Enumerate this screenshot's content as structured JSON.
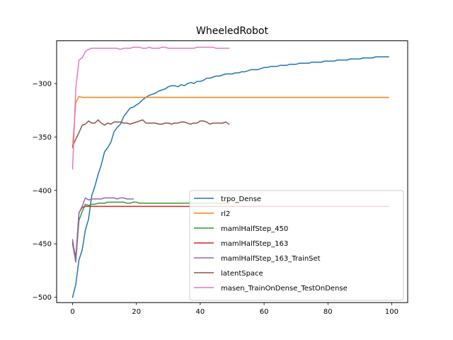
{
  "chart_data": {
    "type": "line",
    "title": "WheeledRobot",
    "xlabel": "",
    "ylabel": "",
    "xlim": [
      -5,
      105
    ],
    "ylim": [
      -505,
      -260
    ],
    "xticks": [
      0,
      20,
      40,
      60,
      80,
      100
    ],
    "xtick_labels": [
      "0",
      "20",
      "40",
      "60",
      "80",
      "100"
    ],
    "yticks": [
      -500,
      -450,
      -400,
      -350,
      -300
    ],
    "ytick_labels": [
      "−500",
      "−450",
      "−400",
      "−350",
      "−300"
    ],
    "grid": false,
    "legend_position": "lower-right",
    "series": [
      {
        "name": "trpo_Dense",
        "color": "#1f77b4",
        "x": [
          0,
          1,
          2,
          3,
          4,
          5,
          6,
          7,
          8,
          9,
          10,
          11,
          12,
          13,
          14,
          15,
          16,
          17,
          18,
          19,
          20,
          21,
          22,
          23,
          24,
          25,
          26,
          27,
          28,
          29,
          30,
          31,
          32,
          33,
          34,
          35,
          36,
          37,
          38,
          39,
          40,
          41,
          42,
          43,
          44,
          45,
          46,
          47,
          48,
          49,
          50,
          51,
          52,
          53,
          54,
          55,
          56,
          57,
          58,
          59,
          60,
          61,
          62,
          63,
          64,
          65,
          66,
          67,
          68,
          69,
          70,
          71,
          72,
          73,
          74,
          75,
          76,
          77,
          78,
          79,
          80,
          81,
          82,
          83,
          84,
          85,
          86,
          87,
          88,
          89,
          90,
          91,
          92,
          93,
          94,
          95,
          96,
          97,
          98,
          99
        ],
        "y": [
          -500,
          -488,
          -465,
          -456,
          -437,
          -427,
          -405,
          -396,
          -385,
          -376,
          -364,
          -360,
          -355,
          -345,
          -341,
          -338,
          -331,
          -327,
          -323,
          -322,
          -320,
          -318,
          -315,
          -313,
          -311,
          -310,
          -309,
          -307,
          -306,
          -305,
          -303,
          -302,
          -302,
          -303,
          -301,
          -302,
          -300,
          -299,
          -300,
          -298,
          -298,
          -297,
          -295,
          -295,
          -294,
          -293,
          -293,
          -292,
          -291,
          -291,
          -291,
          -290,
          -290,
          -289,
          -289,
          -288,
          -287,
          -287,
          -287,
          -286,
          -285,
          -285,
          -284,
          -284,
          -284,
          -283,
          -283,
          -283,
          -282,
          -282,
          -282,
          -281,
          -281,
          -281,
          -281,
          -280,
          -280,
          -280,
          -280,
          -279,
          -279,
          -279,
          -279,
          -278,
          -278,
          -278,
          -278,
          -277,
          -277,
          -277,
          -277,
          -276,
          -276,
          -276,
          -276,
          -275,
          -275,
          -275,
          -275,
          -275
        ]
      },
      {
        "name": "rl2",
        "color": "#ff7f0e",
        "x": [
          0,
          1,
          2,
          3,
          4,
          5,
          10,
          20,
          30,
          40,
          50,
          60,
          70,
          80,
          90,
          99
        ],
        "y": [
          -360,
          -318,
          -312,
          -313,
          -313,
          -313,
          -313,
          -313,
          -313,
          -313,
          -313,
          -313,
          -313,
          -313,
          -313,
          -313
        ]
      },
      {
        "name": "mamlHalfStep_450",
        "color": "#2ca02c",
        "x": [
          0,
          1,
          2,
          3,
          4,
          5,
          6,
          7,
          8,
          9,
          10,
          11,
          12,
          13,
          14,
          15,
          16,
          17,
          18,
          19,
          20,
          21,
          22,
          23,
          24,
          25,
          26,
          27,
          28,
          29,
          30,
          31,
          32,
          33,
          34,
          35,
          36,
          37,
          38,
          39,
          40,
          41,
          42,
          43,
          44,
          45,
          46,
          47,
          48,
          49
        ],
        "y": [
          -450,
          -467,
          -428,
          -420,
          -413,
          -414,
          -413,
          -413,
          -412,
          -412,
          -412,
          -411,
          -411,
          -411,
          -411,
          -411,
          -411,
          -412,
          -412,
          -411,
          -411,
          -412,
          -412,
          -412,
          -412,
          -412,
          -412,
          -412,
          -412,
          -412,
          -412,
          -412,
          -412,
          -412,
          -412,
          -412,
          -412,
          -412,
          -412,
          -412,
          -412,
          -412,
          -412,
          -412,
          -412,
          -412,
          -412,
          -412,
          -412,
          -412
        ]
      },
      {
        "name": "mamlHalfStep_163",
        "color": "#d62728",
        "x": [
          0,
          1,
          2,
          3,
          4,
          5,
          10,
          20,
          30,
          40,
          50,
          60,
          70,
          80,
          90,
          99
        ],
        "y": [
          -448,
          -463,
          -421,
          -416,
          -415,
          -415,
          -415,
          -415,
          -415,
          -415,
          -415,
          -415,
          -415,
          -415,
          -415,
          -415
        ]
      },
      {
        "name": "mamlHalfStep_163_TrainSet",
        "color": "#9467bd",
        "x": [
          0,
          1,
          2,
          3,
          4,
          5,
          6,
          7,
          8,
          9,
          10,
          11,
          12,
          13,
          14,
          15,
          16,
          17,
          18,
          19
        ],
        "y": [
          -446,
          -467,
          -421,
          -415,
          -407,
          -409,
          -408,
          -408,
          -408,
          -408,
          -407,
          -407,
          -407,
          -407,
          -408,
          -407,
          -407,
          -408,
          -408,
          -408
        ]
      },
      {
        "name": "latentSpace",
        "color": "#8c564b",
        "x": [
          0,
          1,
          2,
          3,
          4,
          5,
          6,
          7,
          8,
          9,
          10,
          11,
          12,
          13,
          14,
          15,
          16,
          17,
          18,
          19,
          20,
          21,
          22,
          23,
          24,
          25,
          26,
          27,
          28,
          29,
          30,
          31,
          32,
          33,
          34,
          35,
          36,
          37,
          38,
          39,
          40,
          41,
          42,
          43,
          44,
          45,
          46,
          47,
          48,
          49
        ],
        "y": [
          -359,
          -352,
          -346,
          -339,
          -338,
          -335,
          -337,
          -337,
          -334,
          -337,
          -339,
          -337,
          -338,
          -336,
          -336,
          -336,
          -337,
          -337,
          -338,
          -337,
          -336,
          -335,
          -334,
          -337,
          -337,
          -337,
          -337,
          -338,
          -338,
          -337,
          -337,
          -338,
          -337,
          -337,
          -336,
          -336,
          -337,
          -338,
          -337,
          -337,
          -335,
          -335,
          -336,
          -338,
          -337,
          -337,
          -337,
          -337,
          -336,
          -338
        ]
      },
      {
        "name": "masen_TrainOnDense_TestOnDense",
        "color": "#e377c2",
        "x": [
          0,
          1,
          2,
          3,
          4,
          5,
          6,
          7,
          8,
          9,
          10,
          11,
          12,
          13,
          14,
          15,
          16,
          17,
          18,
          19,
          20,
          21,
          22,
          23,
          24,
          25,
          26,
          27,
          28,
          29,
          30,
          31,
          32,
          33,
          34,
          35,
          36,
          37,
          38,
          39,
          40,
          41,
          42,
          43,
          44,
          45,
          46,
          47,
          48,
          49
        ],
        "y": [
          -380,
          -305,
          -278,
          -276,
          -270,
          -268,
          -267,
          -267,
          -267,
          -267,
          -267,
          -267,
          -267,
          -267,
          -267,
          -268,
          -267,
          -267,
          -267,
          -266,
          -266,
          -266,
          -267,
          -267,
          -266,
          -267,
          -267,
          -267,
          -266,
          -266,
          -267,
          -267,
          -267,
          -267,
          -267,
          -267,
          -267,
          -267,
          -267,
          -266,
          -266,
          -266,
          -266,
          -266,
          -266,
          -267,
          -267,
          -267,
          -267,
          -267
        ]
      }
    ]
  }
}
